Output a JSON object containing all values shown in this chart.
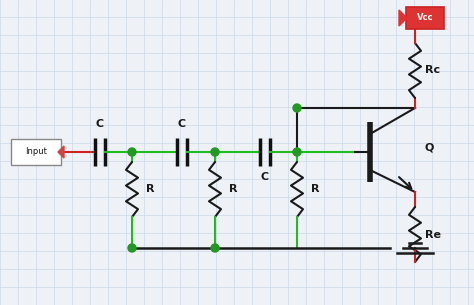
{
  "bg_color": "#eef2f7",
  "grid_color": "#ccd8e8",
  "wire_color": "#1a1a1a",
  "green_wire": "#22bb22",
  "red_wire": "#cc2222",
  "label_color": "#1a1a1a",
  "input_label": "Input",
  "vcc_label": "Vcc",
  "rc_label": "Rc",
  "re_label": "Re",
  "q_label": "Q",
  "c_label": "C",
  "r_label": "R",
  "node_color": "#229922",
  "figw": 4.74,
  "figh": 3.05,
  "dpi": 100,
  "xlim": [
    0,
    474
  ],
  "ylim": [
    0,
    305
  ]
}
